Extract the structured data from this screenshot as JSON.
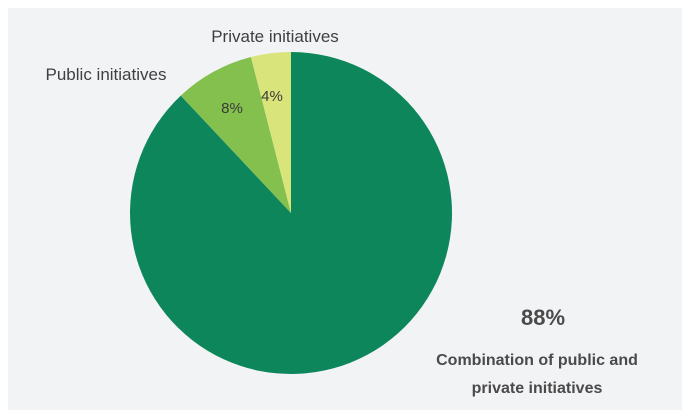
{
  "chart_data": {
    "type": "pie",
    "title": "",
    "slices": [
      {
        "label": "Combination of public and private initiatives",
        "label_lines": [
          "Combination of public and",
          "private initiatives"
        ],
        "value": 88,
        "value_label": "88%",
        "color": "#0e865c"
      },
      {
        "label": "Public initiatives",
        "value": 8,
        "value_label": "8%",
        "color": "#84c04d"
      },
      {
        "label": "Private initiatives",
        "value": 4,
        "value_label": "4%",
        "color": "#d9e57a"
      }
    ],
    "start_angle": "12 o'clock",
    "direction": "clockwise",
    "legend": "none"
  },
  "colors": {
    "background": "#f2f3f5",
    "text": "#3a3a3a"
  }
}
